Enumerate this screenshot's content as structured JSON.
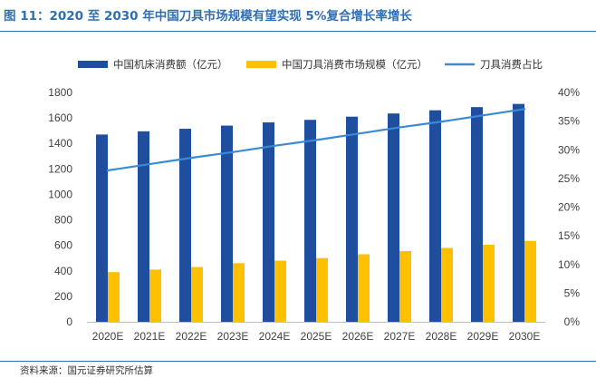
{
  "figure": {
    "title": "图 11：2020 至 2030 年中国刀具市场规模有望实现 5%复合增长率增长",
    "source": "资料来源：国元证券研究所估算",
    "title_color": "#2e6fb6"
  },
  "chart_data": {
    "type": "bar",
    "categories": [
      "2020E",
      "2021E",
      "2022E",
      "2023E",
      "2024E",
      "2025E",
      "2026E",
      "2027E",
      "2028E",
      "2029E",
      "2030E"
    ],
    "series": [
      {
        "name": "中国机床消费额（亿元）",
        "type": "bar",
        "axis": "left",
        "color": "#1f4e9e",
        "values": [
          1470,
          1495,
          1515,
          1540,
          1565,
          1585,
          1610,
          1635,
          1660,
          1685,
          1710
        ]
      },
      {
        "name": "中国刀具消费市场规模（亿元）",
        "type": "bar",
        "axis": "left",
        "color": "#ffc000",
        "values": [
          390,
          410,
          430,
          460,
          480,
          500,
          530,
          555,
          580,
          605,
          635
        ]
      },
      {
        "name": "刀具消费占比",
        "type": "line",
        "axis": "right",
        "color": "#3a8ad6",
        "values": [
          0.264,
          0.275,
          0.286,
          0.296,
          0.307,
          0.317,
          0.328,
          0.339,
          0.349,
          0.36,
          0.371
        ]
      }
    ],
    "y_left": {
      "min": 0,
      "max": 1800,
      "step": 200
    },
    "y_right": {
      "min": 0,
      "max": 0.4,
      "step": 0.05,
      "format": "percent"
    },
    "legend": {
      "position": "top"
    },
    "grid": false
  }
}
